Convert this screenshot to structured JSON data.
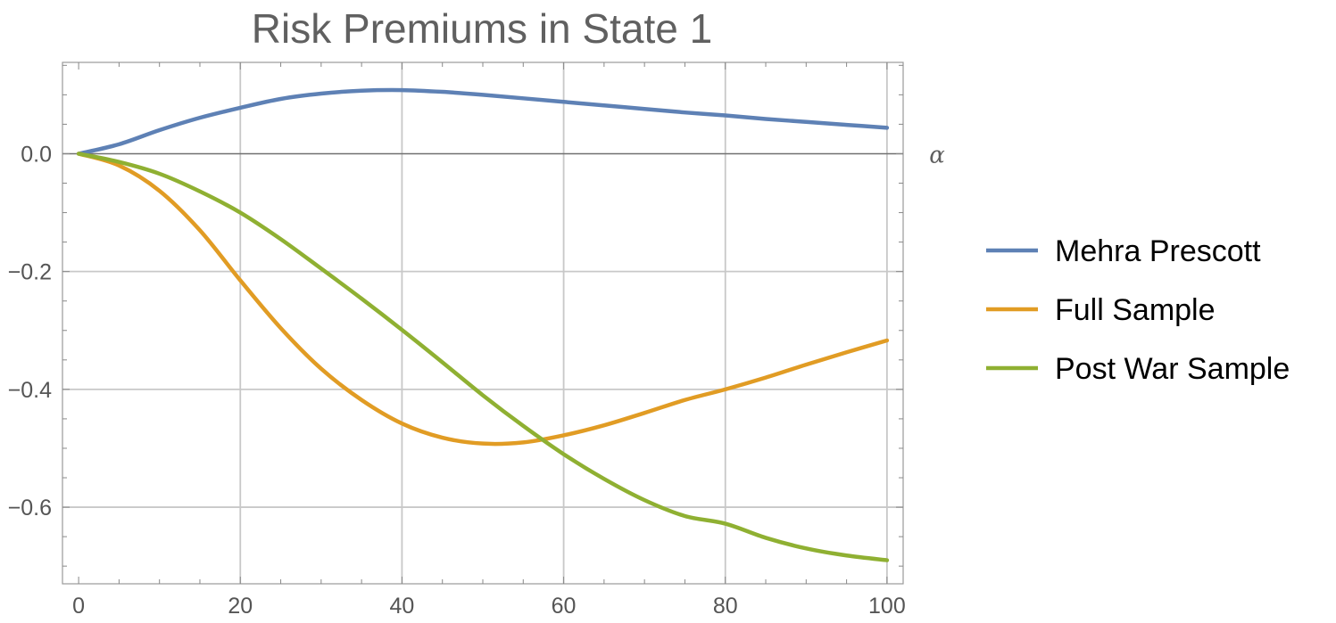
{
  "chart_data": {
    "type": "line",
    "title": "Risk Premiums in State 1",
    "xlabel": "α",
    "ylabel": "",
    "xlim": [
      -2,
      102
    ],
    "ylim": [
      -0.73,
      0.155
    ],
    "xticks": [
      0,
      20,
      40,
      60,
      80,
      100
    ],
    "yticks": [
      0.0,
      -0.2,
      -0.4,
      -0.6
    ],
    "xtick_labels": [
      "0",
      "20",
      "40",
      "60",
      "80",
      "100"
    ],
    "ytick_labels": [
      "0.0",
      "−0.2",
      "−0.4",
      "−0.6"
    ],
    "grid": true,
    "legend_position": "right",
    "x": [
      0,
      5,
      10,
      15,
      20,
      25,
      30,
      35,
      40,
      45,
      50,
      55,
      60,
      65,
      70,
      75,
      80,
      85,
      90,
      95,
      100
    ],
    "series": [
      {
        "name": "Mehra Prescott",
        "color": "#5e81b5",
        "values": [
          0.0,
          0.016,
          0.04,
          0.061,
          0.078,
          0.093,
          0.102,
          0.107,
          0.108,
          0.105,
          0.1,
          0.094,
          0.088,
          0.082,
          0.076,
          0.07,
          0.065,
          0.059,
          0.054,
          0.049,
          0.044
        ]
      },
      {
        "name": "Full Sample",
        "color": "#e19c24",
        "values": [
          0.0,
          -0.02,
          -0.063,
          -0.13,
          -0.215,
          -0.296,
          -0.365,
          -0.418,
          -0.458,
          -0.482,
          -0.492,
          -0.49,
          -0.478,
          -0.461,
          -0.44,
          -0.418,
          -0.4,
          -0.38,
          -0.358,
          -0.337,
          -0.317
        ]
      },
      {
        "name": "Post War Sample",
        "color": "#8fb032",
        "values": [
          0.0,
          -0.014,
          -0.034,
          -0.064,
          -0.1,
          -0.145,
          -0.195,
          -0.246,
          -0.299,
          -0.354,
          -0.41,
          -0.462,
          -0.51,
          -0.552,
          -0.588,
          -0.615,
          -0.628,
          -0.652,
          -0.67,
          -0.682,
          -0.69
        ]
      }
    ]
  }
}
